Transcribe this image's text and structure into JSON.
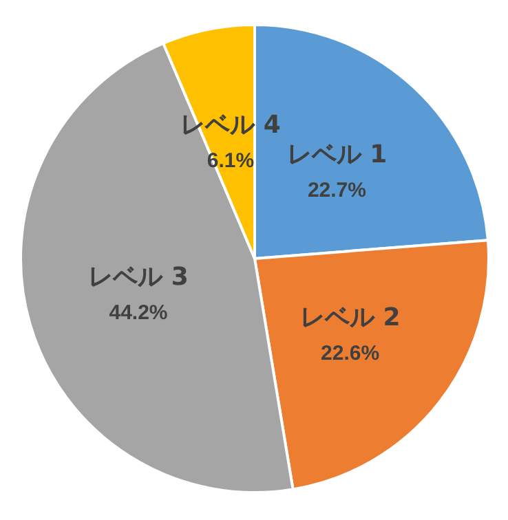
{
  "chart_data": {
    "type": "pie",
    "categories": [
      "レベル 1",
      "レベル 2",
      "レベル 3",
      "レベル 4"
    ],
    "values": [
      22.7,
      22.6,
      44.2,
      6.1
    ],
    "value_labels": [
      "22.7%",
      "22.6%",
      "44.2%",
      "6.1%"
    ],
    "colors": [
      "#5b9bd5",
      "#ed7d31",
      "#a5a5a5",
      "#ffc000"
    ],
    "legend": false
  }
}
